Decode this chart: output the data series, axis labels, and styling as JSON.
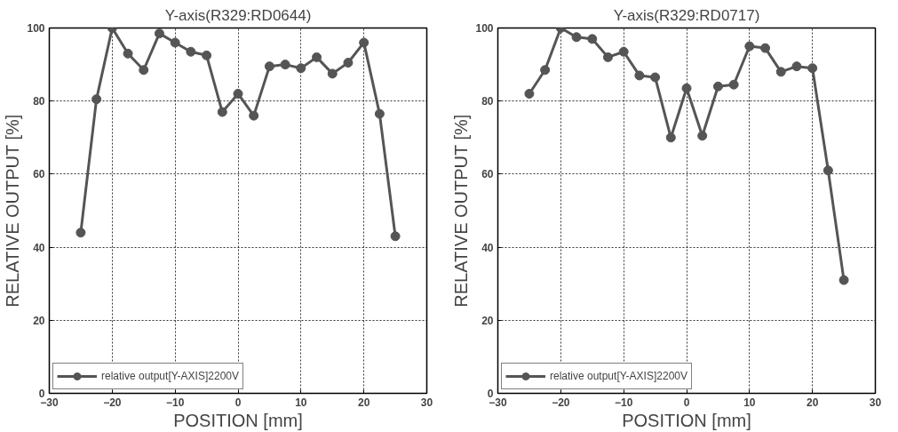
{
  "chart_data": [
    {
      "type": "line",
      "title": "Y-axis(R329:RD0644)",
      "xlabel": "POSITION [mm]",
      "ylabel": "RELATIVE OUTPUT [%]",
      "x": [
        -25,
        -22.5,
        -20,
        -17.5,
        -15,
        -12.5,
        -10,
        -7.5,
        -5,
        -2.5,
        0,
        2.5,
        5,
        7.5,
        10,
        12.5,
        15,
        17.5,
        20,
        22.5,
        25
      ],
      "series": [
        {
          "name": "relative output[Y-AXIS]2200V",
          "color": "#555555",
          "values": [
            44,
            80.5,
            100,
            93,
            88.5,
            98.5,
            96,
            93.5,
            92.5,
            77,
            82,
            76,
            89.5,
            90,
            89,
            92,
            87.5,
            90.5,
            96,
            76.5,
            43
          ]
        }
      ],
      "xlim": [
        -30,
        30
      ],
      "xticks": [
        -30,
        -20,
        -10,
        0,
        10,
        20,
        30
      ],
      "ylim": [
        0,
        100
      ],
      "yticks": [
        0,
        20,
        40,
        60,
        80,
        100
      ],
      "grid": true,
      "legend": "bottom left",
      "marker": "circle",
      "line_style": "solid"
    },
    {
      "type": "line",
      "title": "Y-axis(R329:RD0717)",
      "xlabel": "POSITION [mm]",
      "ylabel": "RELATIVE OUTPUT [%]",
      "x": [
        -25,
        -22.5,
        -20,
        -17.5,
        -15,
        -12.5,
        -10,
        -7.5,
        -5,
        -2.5,
        0,
        2.5,
        5,
        7.5,
        10,
        12.5,
        15,
        17.5,
        20,
        22.5,
        25
      ],
      "series": [
        {
          "name": "relative output[Y-AXIS]2200V",
          "color": "#555555",
          "values": [
            82,
            88.5,
            100,
            97.5,
            97,
            92,
            93.5,
            87,
            86.5,
            70,
            83.5,
            70.5,
            84,
            84.5,
            95,
            94.5,
            88,
            89.5,
            89,
            61,
            31
          ]
        }
      ],
      "xlim": [
        -30,
        30
      ],
      "xticks": [
        -30,
        -20,
        -10,
        0,
        10,
        20,
        30
      ],
      "ylim": [
        0,
        100
      ],
      "yticks": [
        0,
        20,
        40,
        60,
        80,
        100
      ],
      "grid": true,
      "legend": "bottom left",
      "marker": "circle",
      "line_style": "solid"
    }
  ]
}
